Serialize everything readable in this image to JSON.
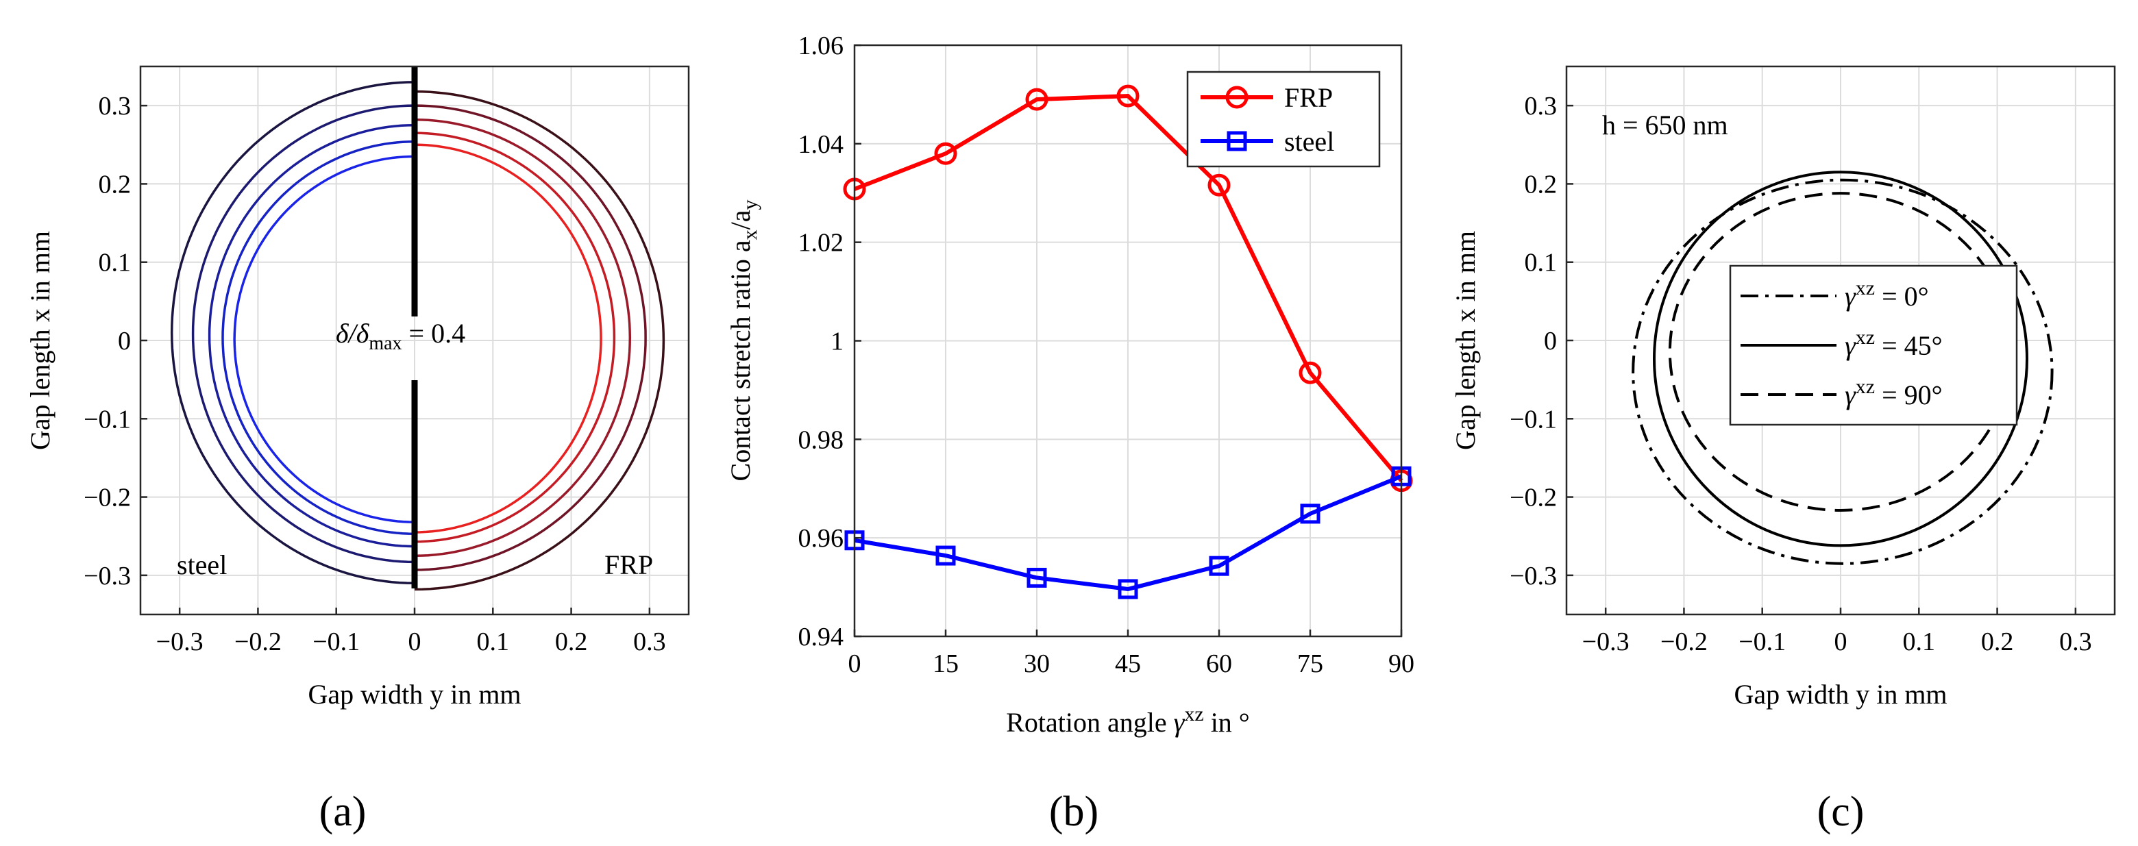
{
  "chart_data": [
    {
      "type": "line",
      "panel_label": "(a)",
      "title": "",
      "xlabel": "Gap width y in mm",
      "ylabel": "Gap length x in mm",
      "xlim": [
        -0.35,
        0.35
      ],
      "ylim": [
        -0.35,
        0.35
      ],
      "xticks": [
        "-0.3",
        "-0.2",
        "-0.1",
        "0",
        "0.1",
        "0.2",
        "0.3"
      ],
      "yticks": [
        "0.3",
        "0.2",
        "0.1",
        "0",
        "-0.1",
        "-0.2",
        "-0.3"
      ],
      "grid": true,
      "annotations": {
        "center_delta": "δ/δ",
        "center_sub": "max",
        "center_value": " = 0.4",
        "left_label": "steel",
        "right_label": "FRP"
      },
      "divider_color": "#000000",
      "series": [
        {
          "name": "steel",
          "side": "left",
          "contours": [
            {
              "x_top": 0.33,
              "x_bottom": -0.31,
              "y_extent": 0.31,
              "color": "#1a1540"
            },
            {
              "x_top": 0.3,
              "x_bottom": -0.283,
              "y_extent": 0.283,
              "color": "#1c1a70"
            },
            {
              "x_top": 0.275,
              "x_bottom": -0.263,
              "y_extent": 0.262,
              "color": "#1a1e9a"
            },
            {
              "x_top": 0.254,
              "x_bottom": -0.247,
              "y_extent": 0.245,
              "color": "#1522c4"
            },
            {
              "x_top": 0.235,
              "x_bottom": -0.232,
              "y_extent": 0.23,
              "color": "#1a24e8"
            }
          ]
        },
        {
          "name": "FRP",
          "side": "right",
          "contours": [
            {
              "x_top": 0.318,
              "x_bottom": -0.318,
              "y_extent": 0.318,
              "color": "#3a1018"
            },
            {
              "x_top": 0.3,
              "x_bottom": -0.293,
              "y_extent": 0.295,
              "color": "#6e1426"
            },
            {
              "x_top": 0.282,
              "x_bottom": -0.275,
              "y_extent": 0.275,
              "color": "#9a1a2a"
            },
            {
              "x_top": 0.265,
              "x_bottom": -0.257,
              "y_extent": 0.255,
              "color": "#c41c24"
            },
            {
              "x_top": 0.25,
              "x_bottom": -0.245,
              "y_extent": 0.238,
              "color": "#e82020"
            }
          ]
        }
      ]
    },
    {
      "type": "line",
      "panel_label": "(b)",
      "title": "",
      "xlabel_pre": "Rotation angle ",
      "xlabel_sym": "γ",
      "xlabel_sup": "xz",
      "xlabel_post": " in °",
      "ylabel_main": "Contact stretch ratio a",
      "ylabel_sub1": "x",
      "ylabel_mid": "/a",
      "ylabel_sub2": "y",
      "x": [
        0,
        15,
        30,
        45,
        60,
        75,
        90
      ],
      "xlim": [
        0,
        90
      ],
      "ylim": [
        0.94,
        1.06
      ],
      "xticks": [
        "0",
        "15",
        "30",
        "45",
        "60",
        "75",
        "90"
      ],
      "yticks": [
        "1.06",
        "1.04",
        "1.02",
        "1",
        "0.98",
        "0.96",
        "0.94"
      ],
      "grid": true,
      "legend_position": "top-right",
      "series": [
        {
          "name": "FRP",
          "color": "#ff0000",
          "marker": "circle",
          "values": [
            1.0308,
            1.038,
            1.049,
            1.0497,
            1.0316,
            0.9935,
            0.9716
          ]
        },
        {
          "name": "steel",
          "color": "#0000ff",
          "marker": "square",
          "values": [
            0.9595,
            0.9564,
            0.9519,
            0.9496,
            0.9543,
            0.9649,
            0.9725
          ]
        }
      ]
    },
    {
      "type": "line",
      "panel_label": "(c)",
      "title": "",
      "xlabel": "Gap width y in mm",
      "ylabel": "Gap length x in mm",
      "xlim": [
        -0.35,
        0.35
      ],
      "ylim": [
        -0.35,
        0.35
      ],
      "xticks": [
        "-0.3",
        "-0.2",
        "-0.1",
        "0",
        "0.1",
        "0.2",
        "0.3"
      ],
      "yticks": [
        "0.3",
        "0.2",
        "0.1",
        "0",
        "-0.1",
        "-0.2",
        "-0.3"
      ],
      "grid": true,
      "annotation": "h = 650 nm",
      "legend_position": "center",
      "series": [
        {
          "name_sym": "γ",
          "name_sup": "xz",
          "name_val": " = 0°",
          "style": "dashdot",
          "x_top": 0.205,
          "x_bottom": -0.285,
          "y_min": -0.265,
          "y_max": 0.27
        },
        {
          "name_sym": "γ",
          "name_sup": "xz",
          "name_val": " = 45°",
          "style": "solid",
          "x_top": 0.215,
          "x_bottom": -0.262,
          "y_min": -0.238,
          "y_max": 0.238
        },
        {
          "name_sym": "γ",
          "name_sup": "xz",
          "name_val": " = 90°",
          "style": "dashed",
          "x_top": 0.188,
          "x_bottom": -0.217,
          "y_min": -0.218,
          "y_max": 0.218
        }
      ]
    }
  ]
}
